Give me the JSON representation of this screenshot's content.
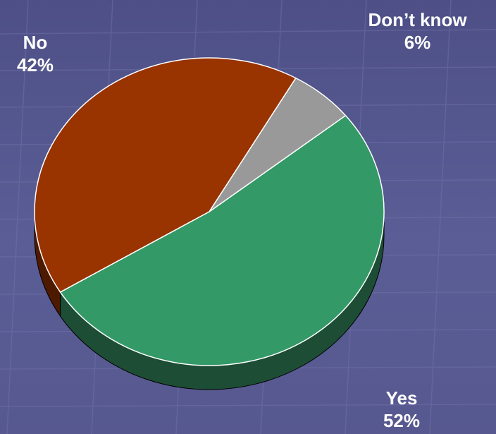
{
  "chart_data": {
    "type": "pie",
    "slices": [
      {
        "label": "Yes",
        "value": 52,
        "value_label": "52%",
        "color": "#339966",
        "side_color": "#1d4d35"
      },
      {
        "label": "No",
        "value": 42,
        "value_label": "42%",
        "color": "#993300",
        "side_color": "#4d1a00"
      },
      {
        "label": "Don’t know",
        "value": 6,
        "value_label": "6%",
        "color": "#999999",
        "side_color": "#4d4d4d"
      }
    ],
    "style": "3d"
  },
  "colors": {
    "background": "#5a5c94",
    "grid_line": "#7072a8",
    "label_text": "#ffffff",
    "slice_border": "#ffffff"
  }
}
